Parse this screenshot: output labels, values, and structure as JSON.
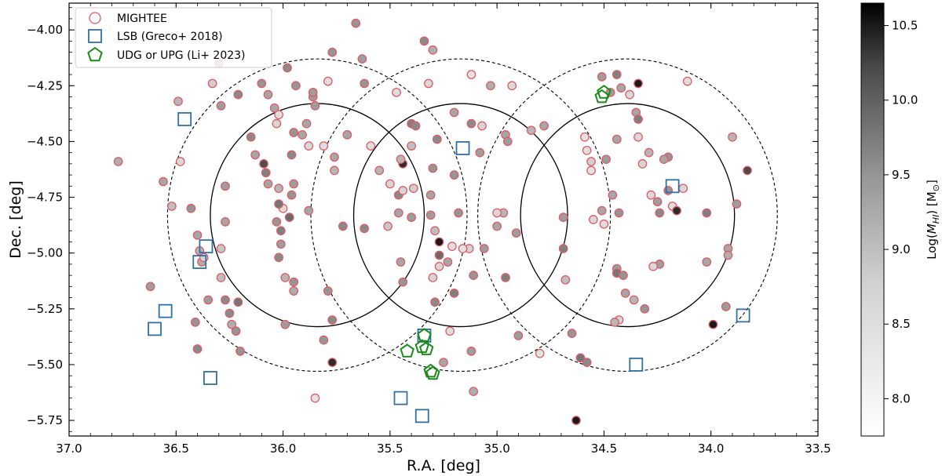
{
  "chart_data": {
    "type": "scatter",
    "xlabel": "R.A. [deg]",
    "ylabel": "Dec. [deg]",
    "xlim": [
      37.0,
      33.5
    ],
    "ylim": [
      -5.82,
      -3.88
    ],
    "xticks": [
      37.0,
      36.5,
      36.0,
      35.5,
      35.0,
      34.5,
      34.0,
      33.5
    ],
    "xtick_labels": [
      "37.0",
      "36.5",
      "36.0",
      "35.5",
      "35.0",
      "34.5",
      "34.0",
      "33.5"
    ],
    "yticks": [
      -4.0,
      -4.25,
      -4.5,
      -4.75,
      -5.0,
      -5.25,
      -5.5,
      -5.75
    ],
    "ytick_labels": [
      "−4.00",
      "−4.25",
      "−4.50",
      "−4.75",
      "−5.00",
      "−5.25",
      "−5.50",
      "−5.75"
    ],
    "grid": false,
    "legend_position": "top-left",
    "colorbar": {
      "label": "Log(M_HI) [M⊙]",
      "label_parts": [
        "Log(",
        "M",
        "HI",
        ") [M",
        "⊙",
        "]"
      ],
      "range": [
        7.75,
        10.65
      ],
      "ticks": [
        8.0,
        8.5,
        9.0,
        9.5,
        10.0,
        10.5
      ],
      "tick_labels": [
        "8.0",
        "8.5",
        "9.0",
        "9.5",
        "10.0",
        "10.5"
      ],
      "colormap": "Greys"
    },
    "circles": [
      {
        "ra": 35.84,
        "dec": -4.83,
        "radius_deg": 0.5,
        "style": "solid"
      },
      {
        "ra": 35.84,
        "dec": -4.83,
        "radius_deg": 0.7,
        "style": "dashed"
      },
      {
        "ra": 35.17,
        "dec": -4.83,
        "radius_deg": 0.5,
        "style": "solid"
      },
      {
        "ra": 35.17,
        "dec": -4.83,
        "radius_deg": 0.7,
        "style": "dashed"
      },
      {
        "ra": 34.39,
        "dec": -4.83,
        "radius_deg": 0.5,
        "style": "solid"
      },
      {
        "ra": 34.39,
        "dec": -4.83,
        "radius_deg": 0.7,
        "style": "dashed"
      }
    ],
    "series": [
      {
        "name": "MIGHTEE",
        "marker": "circle",
        "edge_color": "#e05a66",
        "points": [
          [
            36.77,
            -4.59,
            9.2
          ],
          [
            36.62,
            -5.15,
            9.4
          ],
          [
            36.56,
            -4.68,
            9.3
          ],
          [
            36.52,
            -4.79,
            9.0
          ],
          [
            36.49,
            -4.32,
            9.1
          ],
          [
            36.48,
            -4.59,
            8.6
          ],
          [
            36.43,
            -4.8,
            9.5
          ],
          [
            36.4,
            -4.92,
            9.3
          ],
          [
            36.38,
            -5.04,
            9.2
          ],
          [
            36.37,
            -5.02,
            8.7
          ],
          [
            36.39,
            -4.99,
            9.1
          ],
          [
            36.35,
            -5.21,
            9.4
          ],
          [
            36.41,
            -5.31,
            9.5
          ],
          [
            36.4,
            -5.43,
            9.6
          ],
          [
            36.33,
            -4.24,
            8.8
          ],
          [
            36.3,
            -4.15,
            9.5
          ],
          [
            36.29,
            -4.34,
            9.4
          ],
          [
            36.29,
            -5.11,
            9.0
          ],
          [
            36.29,
            -4.98,
            8.9
          ],
          [
            36.27,
            -4.7,
            9.4
          ],
          [
            36.27,
            -4.86,
            9.3
          ],
          [
            36.27,
            -5.21,
            9.6
          ],
          [
            36.25,
            -5.27,
            9.6
          ],
          [
            36.24,
            -5.32,
            9.2
          ],
          [
            36.22,
            -5.35,
            9.5
          ],
          [
            36.21,
            -5.22,
            9.8
          ],
          [
            36.2,
            -5.44,
            9.5
          ],
          [
            36.21,
            -4.29,
            9.6
          ],
          [
            36.15,
            -4.48,
            9.6
          ],
          [
            36.13,
            -4.56,
            9.3
          ],
          [
            36.09,
            -4.6,
            10.2
          ],
          [
            36.08,
            -4.64,
            9.7
          ],
          [
            36.07,
            -4.69,
            9.3
          ],
          [
            36.02,
            -4.71,
            9.1
          ],
          [
            36.03,
            -4.86,
            9.5
          ],
          [
            36.01,
            -4.96,
            9.4
          ],
          [
            36.02,
            -5.02,
            9.6
          ],
          [
            35.99,
            -5.11,
            9.1
          ],
          [
            35.95,
            -5.13,
            9.5
          ],
          [
            35.96,
            -4.74,
            9.5
          ],
          [
            35.97,
            -4.84,
            9.9
          ],
          [
            35.95,
            -4.69,
            9.4
          ],
          [
            36.01,
            -4.9,
            9.7
          ],
          [
            35.96,
            -4.56,
            9.6
          ],
          [
            36.0,
            -4.8,
            8.5
          ],
          [
            36.02,
            -4.78,
            9.8
          ],
          [
            36.02,
            -4.38,
            8.5
          ],
          [
            36.03,
            -4.42,
            8.7
          ],
          [
            36.04,
            -4.35,
            9.3
          ],
          [
            36.07,
            -4.29,
            9.3
          ],
          [
            36.1,
            -4.24,
            9.5
          ],
          [
            35.98,
            -4.17,
            9.6
          ],
          [
            35.94,
            -4.25,
            9.5
          ],
          [
            35.91,
            -4.47,
            9.3
          ],
          [
            35.95,
            -4.46,
            9.5
          ],
          [
            35.88,
            -4.52,
            8.6
          ],
          [
            35.88,
            -4.81,
            9.3
          ],
          [
            35.86,
            -4.3,
            9.4
          ],
          [
            35.85,
            -4.34,
            9.4
          ],
          [
            35.81,
            -4.52,
            8.5
          ],
          [
            35.76,
            -4.57,
            9.3
          ],
          [
            35.76,
            -4.63,
            9.1
          ],
          [
            35.7,
            -4.47,
            9.3
          ],
          [
            35.72,
            -4.88,
            9.6
          ],
          [
            35.77,
            -4.1,
            9.5
          ],
          [
            35.79,
            -4.23,
            8.5
          ],
          [
            35.79,
            -5.17,
            9.5
          ],
          [
            35.77,
            -5.3,
            9.6
          ],
          [
            35.81,
            -5.39,
            9.5
          ],
          [
            35.77,
            -5.49,
            10.4
          ],
          [
            35.85,
            -5.65,
            8.4
          ],
          [
            35.99,
            -5.32,
            9.4
          ],
          [
            35.95,
            -5.17,
            9.2
          ],
          [
            35.66,
            -3.97,
            9.5
          ],
          [
            35.63,
            -4.13,
            9.4
          ],
          [
            35.62,
            -4.24,
            9.5
          ],
          [
            35.59,
            -4.52,
            8.5
          ],
          [
            35.55,
            -4.63,
            9.1
          ],
          [
            35.62,
            -4.89,
            9.6
          ],
          [
            35.51,
            -4.88,
            8.9
          ],
          [
            35.5,
            -4.69,
            8.7
          ],
          [
            35.46,
            -4.82,
            9.3
          ],
          [
            35.46,
            -4.74,
            9.6
          ],
          [
            35.44,
            -4.6,
            10.4
          ],
          [
            35.44,
            -4.72,
            8.7
          ],
          [
            35.45,
            -5.04,
            9.3
          ],
          [
            35.44,
            -5.13,
            9.5
          ],
          [
            35.47,
            -4.28,
            8.5
          ],
          [
            35.45,
            -4.58,
            9.1
          ],
          [
            35.4,
            -4.52,
            9.0
          ],
          [
            35.4,
            -4.84,
            9.4
          ],
          [
            35.39,
            -4.71,
            8.8
          ],
          [
            35.4,
            -4.42,
            9.7
          ],
          [
            35.38,
            -4.43,
            9.6
          ],
          [
            35.34,
            -4.05,
            9.6
          ],
          [
            35.3,
            -4.09,
            9.2
          ],
          [
            35.32,
            -4.24,
            8.6
          ],
          [
            35.28,
            -4.49,
            9.6
          ],
          [
            35.3,
            -4.62,
            9.5
          ],
          [
            35.31,
            -4.74,
            9.3
          ],
          [
            35.31,
            -4.83,
            9.4
          ],
          [
            35.29,
            -4.9,
            9.0
          ],
          [
            35.27,
            -4.95,
            10.5
          ],
          [
            35.27,
            -5.01,
            9.9
          ],
          [
            35.27,
            -5.06,
            8.7
          ],
          [
            35.3,
            -5.11,
            8.7
          ],
          [
            35.29,
            -5.22,
            9.6
          ],
          [
            35.25,
            -5.49,
            9.3
          ],
          [
            35.22,
            -5.35,
            8.5
          ],
          [
            35.2,
            -4.37,
            9.3
          ],
          [
            35.2,
            -4.65,
            9.5
          ],
          [
            35.18,
            -4.82,
            9.5
          ],
          [
            35.21,
            -4.97,
            8.5
          ],
          [
            35.2,
            -5.18,
            9.7
          ],
          [
            35.12,
            -4.2,
            8.4
          ],
          [
            35.12,
            -4.42,
            9.6
          ],
          [
            35.07,
            -4.43,
            8.7
          ],
          [
            35.03,
            -4.25,
            9.2
          ],
          [
            35.08,
            -4.55,
            9.4
          ],
          [
            35.06,
            -4.98,
            9.4
          ],
          [
            35.13,
            -4.98,
            8.7
          ],
          [
            35.16,
            -4.98,
            8.4
          ],
          [
            35.11,
            -5.1,
            9.5
          ],
          [
            35.12,
            -5.44,
            9.4
          ],
          [
            35.11,
            -5.62,
            9.2
          ],
          [
            34.96,
            -4.47,
            9.3
          ],
          [
            34.95,
            -4.5,
            9.4
          ],
          [
            34.93,
            -4.25,
            8.6
          ],
          [
            34.97,
            -4.82,
            9.1
          ],
          [
            34.96,
            -5.11,
            9.7
          ],
          [
            34.91,
            -4.91,
            9.4
          ],
          [
            34.9,
            -5.37,
            9.4
          ],
          [
            35.0,
            -4.82,
            8.6
          ],
          [
            35.0,
            -4.88,
            9.3
          ],
          [
            34.84,
            -4.45,
            9.1
          ],
          [
            34.78,
            -4.43,
            9.3
          ],
          [
            34.8,
            -5.45,
            8.4
          ],
          [
            34.69,
            -4.84,
            9.4
          ],
          [
            34.69,
            -4.98,
            9.7
          ],
          [
            34.68,
            -5.12,
            9.0
          ],
          [
            34.63,
            -5.75,
            10.5
          ],
          [
            34.61,
            -5.47,
            9.8
          ],
          [
            34.59,
            -4.48,
            8.4
          ],
          [
            34.58,
            -4.54,
            8.5
          ],
          [
            34.56,
            -4.59,
            8.8
          ],
          [
            34.56,
            -4.63,
            8.4
          ],
          [
            34.55,
            -4.85,
            8.6
          ],
          [
            34.5,
            -4.87,
            8.5
          ],
          [
            34.51,
            -4.21,
            9.4
          ],
          [
            34.47,
            -4.28,
            9.4
          ],
          [
            34.44,
            -4.2,
            9.7
          ],
          [
            34.42,
            -4.26,
            9.3
          ],
          [
            34.38,
            -4.29,
            8.6
          ],
          [
            34.34,
            -4.24,
            10.5
          ],
          [
            34.35,
            -4.37,
            9.3
          ],
          [
            34.34,
            -4.4,
            9.7
          ],
          [
            34.34,
            -4.48,
            8.6
          ],
          [
            34.32,
            -4.6,
            8.7
          ],
          [
            34.44,
            -4.49,
            9.3
          ],
          [
            34.49,
            -4.58,
            9.4
          ],
          [
            34.46,
            -4.74,
            9.3
          ],
          [
            34.51,
            -4.81,
            9.3
          ],
          [
            34.43,
            -4.82,
            9.5
          ],
          [
            34.44,
            -5.07,
            9.4
          ],
          [
            34.44,
            -5.09,
            9.8
          ],
          [
            34.41,
            -5.1,
            9.5
          ],
          [
            34.4,
            -5.18,
            9.3
          ],
          [
            34.36,
            -5.21,
            9.1
          ],
          [
            34.31,
            -5.25,
            9.5
          ],
          [
            34.43,
            -5.3,
            8.7
          ],
          [
            34.45,
            -5.31,
            9.1
          ],
          [
            34.29,
            -4.55,
            9.1
          ],
          [
            34.28,
            -4.74,
            8.6
          ],
          [
            34.25,
            -4.77,
            9.4
          ],
          [
            34.24,
            -4.82,
            9.6
          ],
          [
            34.2,
            -4.72,
            9.5
          ],
          [
            34.2,
            -4.57,
            9.5
          ],
          [
            34.18,
            -4.79,
            8.5
          ],
          [
            34.16,
            -4.81,
            10.4
          ],
          [
            34.13,
            -4.71,
            8.6
          ],
          [
            34.11,
            -4.23,
            8.5
          ],
          [
            34.02,
            -4.82,
            9.7
          ],
          [
            34.02,
            -5.04,
            9.3
          ],
          [
            33.99,
            -5.32,
            10.5
          ],
          [
            33.88,
            -4.78,
            9.4
          ],
          [
            33.83,
            -4.63,
            10.2
          ],
          [
            33.9,
            -4.48,
            9.1
          ],
          [
            33.93,
            -5.24,
            9.4
          ],
          [
            33.92,
            -4.98,
            9.3
          ],
          [
            33.92,
            -5.01,
            9.2
          ],
          [
            34.58,
            -5.49,
            9.6
          ],
          [
            34.65,
            -5.36,
            9.5
          ],
          [
            34.24,
            -5.05,
            9.4
          ],
          [
            34.27,
            -5.06,
            8.6
          ],
          [
            34.22,
            -4.58,
            9.3
          ],
          [
            35.23,
            -5.04,
            9.3
          ],
          [
            35.86,
            -4.28,
            9.4
          ],
          [
            35.89,
            -4.42,
            9.3
          ]
        ]
      },
      {
        "name": "LSB (Greco+ 2018)",
        "marker": "square",
        "edge_color": "#3070a8",
        "points": [
          [
            36.46,
            -4.4
          ],
          [
            36.36,
            -4.97
          ],
          [
            36.39,
            -5.04
          ],
          [
            36.55,
            -5.26
          ],
          [
            36.6,
            -5.34
          ],
          [
            36.34,
            -5.56
          ],
          [
            35.45,
            -5.65
          ],
          [
            35.35,
            -5.73
          ],
          [
            35.34,
            -5.37
          ],
          [
            35.16,
            -4.53
          ],
          [
            34.35,
            -5.5
          ],
          [
            34.18,
            -4.7
          ],
          [
            33.85,
            -5.28
          ]
        ]
      },
      {
        "name": "UDG or UPG (Li+ 2023)",
        "marker": "pentagon",
        "edge_color": "#1a8a1a",
        "points": [
          [
            34.5,
            -4.28
          ],
          [
            34.51,
            -4.3
          ],
          [
            35.42,
            -5.44
          ],
          [
            35.35,
            -5.42
          ],
          [
            35.33,
            -5.43
          ],
          [
            35.34,
            -5.37
          ],
          [
            35.31,
            -5.53
          ],
          [
            35.3,
            -5.54
          ]
        ]
      }
    ]
  }
}
